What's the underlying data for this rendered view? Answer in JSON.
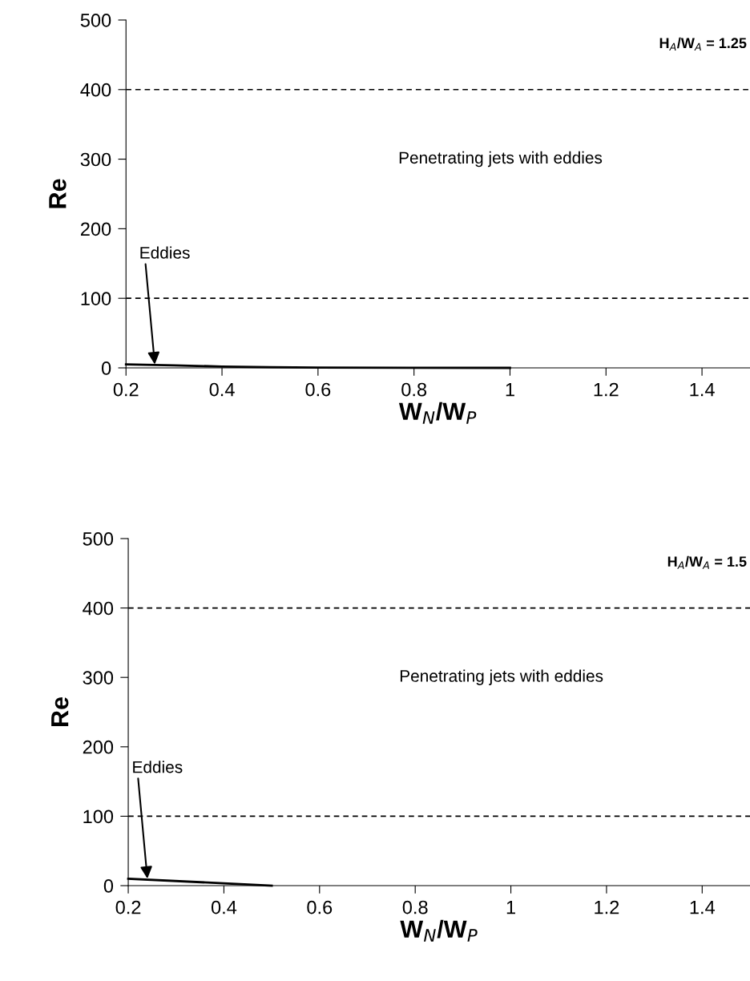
{
  "chart_data": [
    {
      "type": "line",
      "xlabel": "W$_{N}$/W$_{P}$",
      "ylabel": "Re",
      "xlim": [
        0.2,
        1.5
      ],
      "ylim": [
        0,
        500
      ],
      "xticks": [
        0.2,
        0.4,
        0.6,
        0.8,
        1,
        1.2,
        1.4
      ],
      "yticks": [
        0,
        100,
        200,
        300,
        400,
        500
      ],
      "grid": false,
      "legend": false,
      "marker": "none",
      "line_style": "solid",
      "series": [
        {
          "color": "#000000",
          "x": [
            0.2,
            0.3,
            0.4,
            0.5,
            0.6,
            1.0
          ],
          "values": [
            5,
            3.5,
            2,
            1,
            0.5,
            0
          ]
        }
      ],
      "ref_lines": [
        {
          "axis": "y",
          "value": 400,
          "line_style": "dashed",
          "color": "#000000"
        },
        {
          "axis": "y",
          "value": 100,
          "line_style": "dashed",
          "color": "#000000"
        }
      ],
      "annotations": [
        "H$_{A}$/W$_{A}$ = 1.25",
        "Penetrating jets with eddies",
        {
          "text": "Eddies",
          "x": 0.26,
          "y": 5
        }
      ]
    },
    {
      "type": "line",
      "xlabel": "W$_{N}$/W$_{P}$",
      "ylabel": "Re",
      "xlim": [
        0.2,
        1.5
      ],
      "ylim": [
        0,
        500
      ],
      "xticks": [
        0.2,
        0.4,
        0.6,
        0.8,
        1,
        1.2,
        1.4
      ],
      "yticks": [
        0,
        100,
        200,
        300,
        400,
        500
      ],
      "grid": false,
      "legend": false,
      "marker": "none",
      "line_style": "solid",
      "series": [
        {
          "color": "#000000",
          "x": [
            0.2,
            0.5
          ],
          "values": [
            10,
            0
          ]
        }
      ],
      "ref_lines": [
        {
          "axis": "y",
          "value": 400,
          "line_style": "dashed",
          "color": "#000000"
        },
        {
          "axis": "y",
          "value": 100,
          "line_style": "dashed",
          "color": "#000000"
        }
      ],
      "annotations": [
        "H$_{A}$/W$_{A}$ = 1.5",
        "Penetrating jets with eddies",
        {
          "text": "Eddies",
          "x": 0.24,
          "y": 10
        }
      ]
    }
  ]
}
